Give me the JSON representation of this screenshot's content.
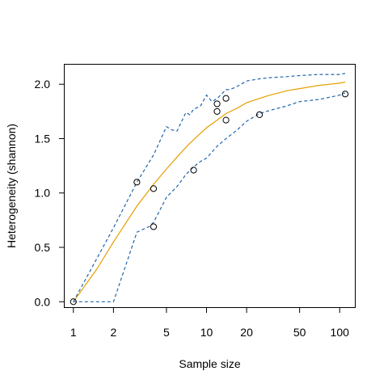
{
  "chart_data": {
    "type": "line",
    "title": "",
    "xlabel": "Sample size",
    "ylabel": "Heterogeneity (shannon)",
    "x_scale": "log",
    "xlim": [
      0.86,
      130
    ],
    "ylim": [
      -0.05,
      2.18
    ],
    "x_ticks": [
      1,
      2,
      5,
      10,
      20,
      50,
      100
    ],
    "x_tick_labels": [
      "1",
      "2",
      "5",
      "10",
      "20",
      "50",
      "100"
    ],
    "y_ticks": [
      0.0,
      0.5,
      1.0,
      1.5,
      2.0
    ],
    "y_tick_labels": [
      "0.0",
      "0.5",
      "1.0",
      "1.5",
      "2.0"
    ],
    "legend": "none",
    "grid": false,
    "series": [
      {
        "role": "mean",
        "style": "solid",
        "color": "#E69F00",
        "x": [
          1,
          1.5,
          2,
          3,
          4,
          5,
          6,
          7,
          8,
          10,
          12,
          14,
          17,
          20,
          25,
          30,
          40,
          50,
          70,
          100,
          110
        ],
        "y": [
          0.0,
          0.3,
          0.55,
          0.88,
          1.08,
          1.22,
          1.33,
          1.42,
          1.49,
          1.6,
          1.67,
          1.73,
          1.78,
          1.83,
          1.87,
          1.9,
          1.94,
          1.96,
          1.99,
          2.01,
          2.02
        ]
      },
      {
        "role": "upper",
        "style": "dashed",
        "color": "#2166AC",
        "x": [
          1,
          2,
          3,
          4,
          5,
          5.5,
          6,
          7,
          7.5,
          8,
          9,
          10,
          11,
          12,
          13,
          14,
          15,
          17,
          20,
          25,
          30,
          40,
          50,
          70,
          100,
          110
        ],
        "y": [
          0.0,
          0.68,
          1.1,
          1.35,
          1.61,
          1.58,
          1.57,
          1.74,
          1.72,
          1.77,
          1.8,
          1.9,
          1.84,
          1.87,
          1.91,
          1.95,
          1.95,
          1.98,
          2.03,
          2.05,
          2.06,
          2.07,
          2.08,
          2.09,
          2.09,
          2.1
        ]
      },
      {
        "role": "lower",
        "style": "dashed",
        "color": "#2166AC",
        "x": [
          1,
          2,
          3,
          3.7,
          4,
          5,
          6,
          7,
          8,
          9,
          10,
          12,
          14,
          17,
          20,
          25,
          30,
          40,
          50,
          70,
          100,
          110
        ],
        "y": [
          0.0,
          0.0,
          0.64,
          0.69,
          0.73,
          0.96,
          1.06,
          1.17,
          1.24,
          1.29,
          1.32,
          1.43,
          1.5,
          1.58,
          1.66,
          1.73,
          1.76,
          1.8,
          1.84,
          1.86,
          1.9,
          1.92
        ]
      }
    ],
    "points": {
      "x": [
        1,
        3,
        4,
        4,
        8,
        12,
        12,
        14,
        14,
        25,
        110
      ],
      "y": [
        0.0,
        1.1,
        1.04,
        0.69,
        1.21,
        1.82,
        1.75,
        1.87,
        1.67,
        1.72,
        1.91
      ]
    }
  }
}
